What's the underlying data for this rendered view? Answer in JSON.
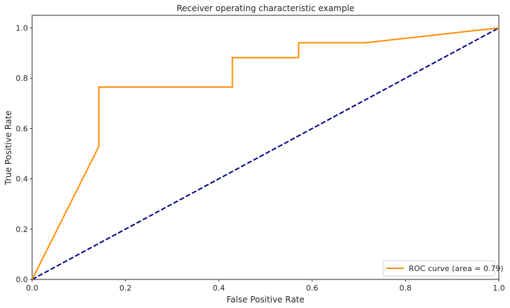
{
  "chart_data": {
    "type": "line",
    "title": "Receiver operating characteristic example",
    "xlabel": "False Positive Rate",
    "ylabel": "True Positive Rate",
    "xlim": [
      0.0,
      1.0
    ],
    "ylim": [
      0.0,
      1.05
    ],
    "x_ticks": [
      "0.0",
      "0.2",
      "0.4",
      "0.6",
      "0.8",
      "1.0"
    ],
    "y_ticks": [
      "0.0",
      "0.2",
      "0.4",
      "0.6",
      "0.8",
      "1.0"
    ],
    "grid": false,
    "legend_position": "lower-right",
    "series": [
      {
        "name": "ROC curve (area = 0.79)",
        "color": "#ff8c00",
        "style": "solid",
        "x": [
          0.0,
          0.143,
          0.143,
          0.429,
          0.429,
          0.571,
          0.571,
          0.714,
          1.0
        ],
        "y": [
          0.0,
          0.529,
          0.765,
          0.765,
          0.882,
          0.882,
          0.941,
          0.941,
          1.0
        ]
      },
      {
        "name": "",
        "color": "#000080",
        "style": "dashed",
        "x": [
          0.0,
          1.0
        ],
        "y": [
          0.0,
          1.0
        ]
      }
    ]
  }
}
